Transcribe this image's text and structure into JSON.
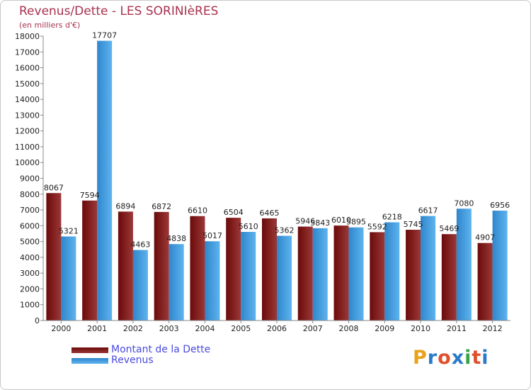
{
  "chart_data": {
    "type": "bar",
    "title": "Revenus/Dette - LES SORINIèRES",
    "subtitle": "(en milliers d'€)",
    "categories": [
      "2000",
      "2001",
      "2002",
      "2003",
      "2004",
      "2005",
      "2006",
      "2007",
      "2008",
      "2009",
      "2010",
      "2011",
      "2012"
    ],
    "series": [
      {
        "name": "Montant de la Dette",
        "color": "#6b0a0a",
        "color_light": "#9b3838",
        "values": [
          8067,
          7594,
          6894,
          6872,
          6610,
          6504,
          6465,
          5946,
          6010,
          5592,
          5745,
          5469,
          4907
        ],
        "labels": [
          "8067",
          "7594",
          "6894",
          "6872",
          "6610",
          "6504",
          "6465",
          "5946",
          "6010",
          "5592",
          "5745",
          "5469",
          "4907"
        ]
      },
      {
        "name": "Revenus",
        "color": "#2f86cc",
        "color_light": "#5eb4ee",
        "values": [
          5321,
          17707,
          4463,
          4838,
          5017,
          5610,
          5362,
          5843,
          5895,
          6218,
          6617,
          7080,
          6956
        ],
        "labels": [
          "5321",
          "17707",
          "4463",
          "4838",
          "5017",
          "5610",
          "5362",
          "5843",
          "5895",
          "6218",
          "6617",
          "7080",
          "6956"
        ]
      }
    ],
    "y_ticks": [
      "0",
      "1000",
      "2000",
      "3000",
      "4000",
      "5000",
      "6000",
      "7000",
      "8000",
      "9000",
      "10000",
      "11000",
      "12000",
      "13000",
      "14000",
      "15000",
      "16000",
      "17000",
      "18000"
    ],
    "ylim": [
      0,
      18000
    ],
    "grid": false,
    "legend_position": "bottom-left"
  },
  "branding": {
    "letters": [
      "P",
      "r",
      "o",
      "x",
      "i",
      "t",
      "i"
    ],
    "colors": [
      "#e8a21c",
      "#2a7ac8",
      "#e0502c",
      "#2a7ac8",
      "#3aa34a",
      "#e0502c",
      "#2a7ac8"
    ]
  }
}
